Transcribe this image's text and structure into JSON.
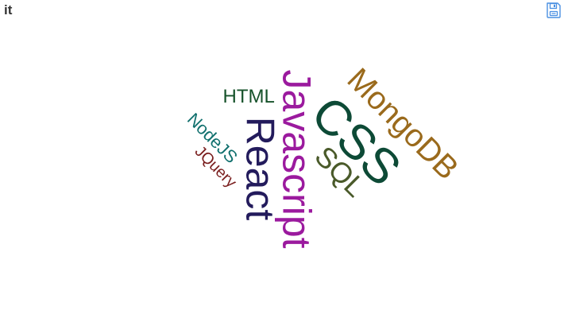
{
  "header": {
    "title": "it"
  },
  "toolbar": {
    "save_icon": "save-as-image-icon",
    "icon_color": "#4a90e2"
  },
  "wordcloud": {
    "words": [
      {
        "text": "Javascript",
        "color": "#9b1a9e",
        "name": "word-javascript"
      },
      {
        "text": "React",
        "color": "#231b5c",
        "name": "word-react"
      },
      {
        "text": "CSS",
        "color": "#0d4a36",
        "name": "word-css"
      },
      {
        "text": "MongoDB",
        "color": "#9a6a1c",
        "name": "word-mongodb"
      },
      {
        "text": "SQL",
        "color": "#4a5a2a",
        "name": "word-sql"
      },
      {
        "text": "HTML",
        "color": "#16522a",
        "name": "word-html"
      },
      {
        "text": "NodeJS",
        "color": "#11706e",
        "name": "word-nodejs"
      },
      {
        "text": "JQuery",
        "color": "#7a1e1e",
        "name": "word-jquery"
      }
    ]
  }
}
